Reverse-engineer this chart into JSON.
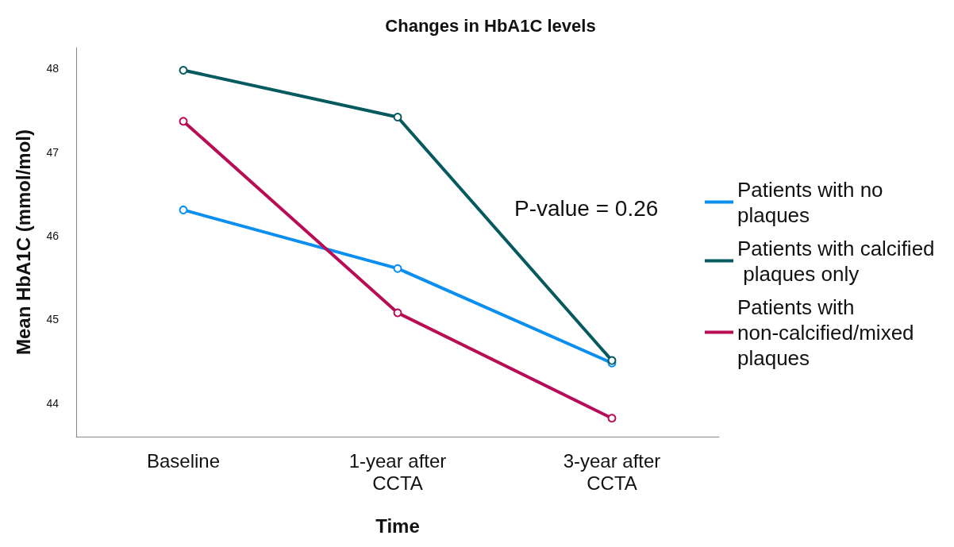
{
  "chart_data": {
    "type": "line",
    "title": "Changes in HbA1C levels",
    "xlabel": "Time",
    "ylabel": "Mean HbA1C (mmol/mol)",
    "categories": [
      "Baseline",
      "1-year after\nCCTA",
      "3-year after\nCCTA"
    ],
    "series": [
      {
        "name": "Patients with no plaques",
        "color": "#0a8ff0",
        "values": [
          46.31,
          45.61,
          44.48
        ]
      },
      {
        "name": "Patients with calcified plaques only",
        "color": "#055a60",
        "values": [
          47.98,
          47.42,
          44.51
        ]
      },
      {
        "name": "Patients with non-calcified/mixed plaques",
        "color": "#b80d55",
        "values": [
          47.37,
          45.08,
          43.82
        ]
      }
    ],
    "ylim": [
      43.6,
      48.25
    ],
    "yticks": [
      44,
      45,
      46,
      47,
      48
    ],
    "grid": false,
    "legend": "right",
    "marker": "circle",
    "line_style": "solid",
    "annotations": [
      "P-value = 0.26"
    ]
  }
}
